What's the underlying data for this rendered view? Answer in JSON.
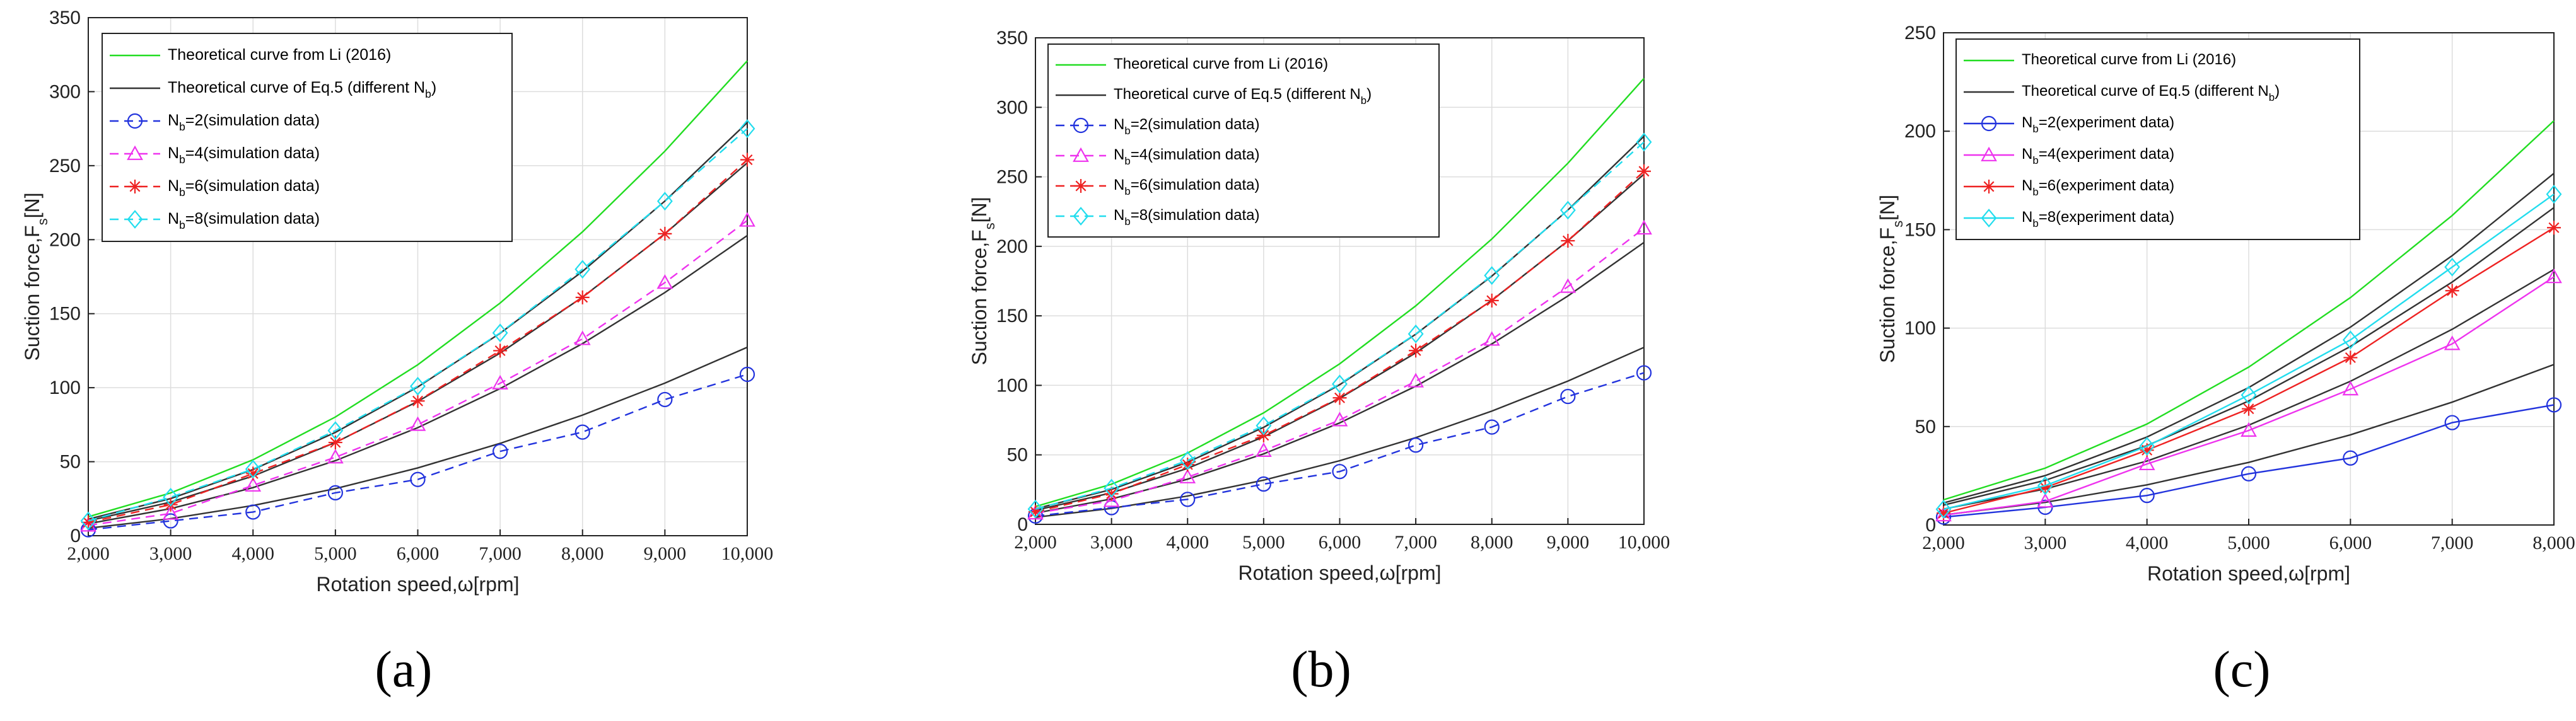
{
  "figure": {
    "captions": [
      "(a)",
      "(b)",
      "(c)"
    ]
  },
  "chart_data": [
    {
      "type": "line",
      "panel": "a",
      "xlabel": "Rotation speed,ω[rpm]",
      "ylabel": "Suction force,F_s[N]",
      "xlim": [
        2000,
        10000
      ],
      "ylim": [
        0,
        350
      ],
      "xticks": [
        2000,
        3000,
        4000,
        5000,
        6000,
        7000,
        8000,
        9000,
        10000
      ],
      "xtick_labels": [
        "2,000",
        "3,000",
        "4,000",
        "5,000",
        "6,000",
        "7,000",
        "8,000",
        "9,000",
        "10,000"
      ],
      "yticks": [
        0,
        50,
        100,
        150,
        200,
        250,
        300,
        350
      ],
      "grid": true,
      "legend_position": "top-left",
      "x": [
        2000,
        3000,
        4000,
        5000,
        6000,
        7000,
        8000,
        9000,
        10000
      ],
      "series": [
        {
          "name": "Theoretical curve from Li (2016)",
          "sub": "",
          "style": "solid",
          "color": "#22dd22",
          "marker": "none",
          "values": [
            12.8,
            28.9,
            51.3,
            80.2,
            115.5,
            157.2,
            205.3,
            259.8,
            320.8
          ]
        },
        {
          "name": "Theoretical curve of Eq.5 (different N",
          "sub": "b",
          "suffix": ")",
          "style": "solid",
          "color": "#333333",
          "marker": "none",
          "group": [
            "Nb2",
            "Nb4",
            "Nb6",
            "Nb8"
          ],
          "values_by_group": {
            "Nb2": [
              5.1,
              11.5,
              20.4,
              31.8,
              45.8,
              62.4,
              81.5,
              103.1,
              127.3
            ],
            "Nb4": [
              8.1,
              18.3,
              32.5,
              50.7,
              73.0,
              99.4,
              129.8,
              164.3,
              202.8
            ],
            "Nb6": [
              10.1,
              22.7,
              40.3,
              63.0,
              90.7,
              123.4,
              161.2,
              204.0,
              251.9
            ],
            "Nb8": [
              11.2,
              25.1,
              44.7,
              69.8,
              100.5,
              136.8,
              178.6,
              226.1,
              279.1
            ]
          }
        },
        {
          "name": "N",
          "sub": "b",
          "suffix": "=2(simulation data)",
          "style": "dashed",
          "color": "#2233dd",
          "marker": "circle",
          "values": [
            4,
            10,
            16,
            29,
            38,
            57,
            70,
            92,
            109
          ]
        },
        {
          "name": "N",
          "sub": "b",
          "suffix": "=4(simulation data)",
          "style": "dashed",
          "color": "#ee33ee",
          "marker": "triangle",
          "values": [
            7,
            15,
            34,
            53,
            75,
            103,
            133,
            171,
            213
          ]
        },
        {
          "name": "N",
          "sub": "b",
          "suffix": "=6(simulation data)",
          "style": "dashed",
          "color": "#ee2222",
          "marker": "star",
          "values": [
            9,
            21,
            42,
            63,
            91,
            125,
            161,
            204,
            254
          ]
        },
        {
          "name": "N",
          "sub": "b",
          "suffix": "=8(simulation data)",
          "style": "dashed",
          "color": "#22ddee",
          "marker": "diamond",
          "values": [
            10,
            26,
            45,
            71,
            101,
            137,
            180,
            226,
            275
          ]
        }
      ]
    },
    {
      "type": "line",
      "panel": "b",
      "xlabel": "Rotation speed,ω[rpm]",
      "ylabel": "Suction force,F_s[N]",
      "xlim": [
        2000,
        10000
      ],
      "ylim": [
        0,
        350
      ],
      "xticks": [
        2000,
        3000,
        4000,
        5000,
        6000,
        7000,
        8000,
        9000,
        10000
      ],
      "xtick_labels": [
        "2,000",
        "3,000",
        "4,000",
        "5,000",
        "6,000",
        "7,000",
        "8,000",
        "9,000",
        "10,000"
      ],
      "yticks": [
        0,
        50,
        100,
        150,
        200,
        250,
        300,
        350
      ],
      "grid": true,
      "legend_position": "top-left",
      "x": [
        2000,
        3000,
        4000,
        5000,
        6000,
        7000,
        8000,
        9000,
        10000
      ],
      "series": [
        {
          "name": "Theoretical curve from Li (2016)",
          "sub": "",
          "style": "solid",
          "color": "#22dd22",
          "marker": "none",
          "values": [
            12.8,
            28.9,
            51.3,
            80.2,
            115.5,
            157.2,
            205.3,
            259.8,
            320.8
          ]
        },
        {
          "name": "Theoretical curve of Eq.5 (different N",
          "sub": "b",
          "suffix": ")",
          "style": "solid",
          "color": "#333333",
          "marker": "none",
          "group": [
            "Nb2",
            "Nb4",
            "Nb6",
            "Nb8"
          ],
          "values_by_group": {
            "Nb2": [
              5.1,
              11.5,
              20.4,
              31.8,
              45.8,
              62.4,
              81.5,
              103.1,
              127.3
            ],
            "Nb4": [
              8.1,
              18.3,
              32.5,
              50.7,
              73.0,
              99.4,
              129.8,
              164.3,
              202.8
            ],
            "Nb6": [
              10.1,
              22.7,
              40.3,
              63.0,
              90.7,
              123.4,
              161.2,
              204.0,
              251.9
            ],
            "Nb8": [
              11.2,
              25.1,
              44.7,
              69.8,
              100.5,
              136.8,
              178.6,
              226.1,
              279.1
            ]
          }
        },
        {
          "name": "N",
          "sub": "b",
          "suffix": "=2(simulation data)",
          "style": "dashed",
          "color": "#2233dd",
          "marker": "circle",
          "values": [
            6,
            12,
            18,
            29,
            38,
            57,
            70,
            92,
            109
          ]
        },
        {
          "name": "N",
          "sub": "b",
          "suffix": "=4(simulation data)",
          "style": "dashed",
          "color": "#ee33ee",
          "marker": "triangle",
          "values": [
            8,
            17,
            34,
            53,
            75,
            103,
            133,
            171,
            213
          ]
        },
        {
          "name": "N",
          "sub": "b",
          "suffix": "=6(simulation data)",
          "style": "dashed",
          "color": "#ee2222",
          "marker": "star",
          "values": [
            9,
            22,
            43,
            64,
            91,
            125,
            161,
            204,
            254
          ]
        },
        {
          "name": "N",
          "sub": "b",
          "suffix": "=8(simulation data)",
          "style": "dashed",
          "color": "#22ddee",
          "marker": "diamond",
          "values": [
            11,
            26,
            46,
            71,
            101,
            137,
            179,
            226,
            275
          ]
        }
      ]
    },
    {
      "type": "line",
      "panel": "c",
      "xlabel": "Rotation speed,ω[rpm]",
      "ylabel": "Suction force,F_s[N]",
      "xlim": [
        2000,
        8000
      ],
      "ylim": [
        0,
        250
      ],
      "xticks": [
        2000,
        3000,
        4000,
        5000,
        6000,
        7000,
        8000
      ],
      "xtick_labels": [
        "2,000",
        "3,000",
        "4,000",
        "5,000",
        "6,000",
        "7,000",
        "8,000"
      ],
      "yticks": [
        0,
        50,
        100,
        150,
        200,
        250
      ],
      "grid": true,
      "legend_position": "top-left",
      "x": [
        2000,
        3000,
        4000,
        5000,
        6000,
        7000,
        8000
      ],
      "series": [
        {
          "name": "Theoretical curve from Li (2016)",
          "sub": "",
          "style": "solid",
          "color": "#22dd22",
          "marker": "none",
          "values": [
            12.8,
            28.9,
            51.3,
            80.2,
            115.5,
            157.2,
            205.3
          ]
        },
        {
          "name": "Theoretical curve of Eq.5 (different N",
          "sub": "b",
          "suffix": ")",
          "style": "solid",
          "color": "#333333",
          "marker": "none",
          "group": [
            "Nb2",
            "Nb4",
            "Nb6",
            "Nb8"
          ],
          "values_by_group": {
            "Nb2": [
              5.1,
              11.5,
              20.4,
              31.8,
              45.8,
              62.4,
              81.5
            ],
            "Nb4": [
              8.1,
              18.3,
              32.5,
              50.7,
              73.0,
              99.4,
              129.8
            ],
            "Nb6": [
              10.1,
              22.7,
              40.3,
              63.0,
              90.7,
              123.4,
              161.2
            ],
            "Nb8": [
              11.2,
              25.1,
              44.7,
              69.8,
              100.5,
              136.8,
              178.6
            ]
          }
        },
        {
          "name": "N",
          "sub": "b",
          "suffix": "=2(experiment data)",
          "style": "solid",
          "color": "#2233dd",
          "marker": "circle",
          "values": [
            4,
            9,
            15,
            26,
            34,
            52,
            61
          ]
        },
        {
          "name": "N",
          "sub": "b",
          "suffix": "=4(experiment data)",
          "style": "solid",
          "color": "#ee33ee",
          "marker": "triangle",
          "values": [
            5,
            12,
            31,
            48,
            69,
            92,
            126
          ]
        },
        {
          "name": "N",
          "sub": "b",
          "suffix": "=6(experiment data)",
          "style": "solid",
          "color": "#ee2222",
          "marker": "star",
          "values": [
            6,
            19,
            38,
            59,
            85,
            119,
            151
          ]
        },
        {
          "name": "N",
          "sub": "b",
          "suffix": "=8(experiment data)",
          "style": "solid",
          "color": "#22ddee",
          "marker": "diamond",
          "values": [
            8,
            20,
            40,
            66,
            94,
            131,
            168
          ]
        }
      ]
    }
  ]
}
